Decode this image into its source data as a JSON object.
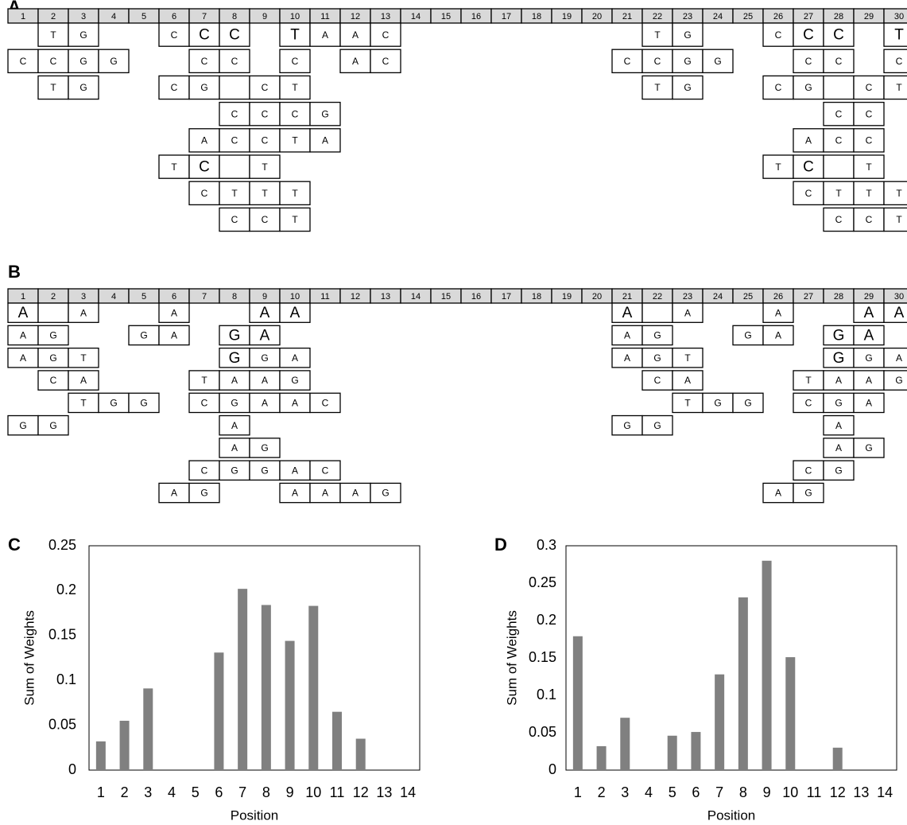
{
  "panel_a": {
    "label": "A",
    "positions": [
      1,
      2,
      3,
      4,
      5,
      6,
      7,
      8,
      9,
      10,
      11,
      12,
      13,
      14,
      15,
      16,
      17,
      18,
      19,
      20,
      21,
      22,
      23,
      24,
      25,
      26,
      27,
      28,
      29,
      30
    ],
    "rows": [
      [
        {
          "col": 2,
          "cells": [
            "T",
            "G"
          ]
        },
        {
          "col": 6,
          "cells": [
            "C",
            {
              "text": "C",
              "large": true
            },
            {
              "text": "C",
              "large": true
            }
          ]
        },
        {
          "col": 10,
          "cells": [
            {
              "text": "T",
              "large": true
            },
            "A",
            "A",
            "C"
          ]
        },
        {
          "col": 22,
          "cells": [
            "T",
            "G"
          ]
        },
        {
          "col": 26,
          "cells": [
            "C",
            {
              "text": "C",
              "large": true
            },
            {
              "text": "C",
              "large": true
            }
          ]
        },
        {
          "col": 30,
          "cells": [
            {
              "text": "T",
              "large": true
            }
          ]
        }
      ],
      [
        {
          "col": 1,
          "cells": [
            "C",
            "C",
            "G",
            "G"
          ]
        },
        {
          "col": 7,
          "cells": [
            "C",
            "C"
          ]
        },
        {
          "col": 10,
          "cells": [
            "C"
          ]
        },
        {
          "col": 12,
          "cells": [
            "A",
            "C"
          ]
        },
        {
          "col": 21,
          "cells": [
            "C",
            "C",
            "G",
            "G"
          ]
        },
        {
          "col": 27,
          "cells": [
            "C",
            "C"
          ]
        },
        {
          "col": 30,
          "cells": [
            "C"
          ]
        }
      ],
      [
        {
          "col": 2,
          "cells": [
            "T",
            "G"
          ]
        },
        {
          "col": 6,
          "cells": [
            "C",
            "G",
            null,
            "C",
            "T"
          ]
        },
        {
          "col": 22,
          "cells": [
            "T",
            "G"
          ]
        },
        {
          "col": 26,
          "cells": [
            "C",
            "G",
            null,
            "C",
            "T"
          ]
        }
      ],
      [
        {
          "col": 8,
          "cells": [
            "C",
            "C",
            "C",
            "G"
          ]
        },
        {
          "col": 28,
          "cells": [
            "C",
            "C"
          ]
        }
      ],
      [
        {
          "col": 7,
          "cells": [
            "A",
            "C",
            "C",
            "T",
            "A"
          ]
        },
        {
          "col": 27,
          "cells": [
            "A",
            "C",
            "C"
          ]
        }
      ],
      [
        {
          "col": 6,
          "cells": [
            "T",
            {
              "text": "C",
              "large": true
            },
            null,
            "T"
          ]
        },
        {
          "col": 26,
          "cells": [
            "T",
            {
              "text": "C",
              "large": true
            },
            null,
            "T"
          ]
        }
      ],
      [
        {
          "col": 7,
          "cells": [
            "C",
            "T",
            "T",
            "T"
          ]
        },
        {
          "col": 27,
          "cells": [
            "C",
            "T",
            "T",
            "T"
          ]
        }
      ],
      [
        {
          "col": 8,
          "cells": [
            "C",
            "C",
            "T"
          ]
        },
        {
          "col": 28,
          "cells": [
            "C",
            "C",
            "T"
          ]
        }
      ]
    ]
  },
  "panel_b": {
    "label": "B",
    "positions": [
      1,
      2,
      3,
      4,
      5,
      6,
      7,
      8,
      9,
      10,
      11,
      12,
      13,
      14,
      15,
      16,
      17,
      18,
      19,
      20,
      21,
      22,
      23,
      24,
      25,
      26,
      27,
      28,
      29,
      30
    ],
    "rows": [
      [
        {
          "col": 1,
          "cells": [
            {
              "text": "A",
              "large": true
            },
            null,
            "A"
          ]
        },
        {
          "col": 6,
          "cells": [
            "A"
          ]
        },
        {
          "col": 9,
          "cells": [
            {
              "text": "A",
              "large": true
            },
            {
              "text": "A",
              "large": true
            }
          ]
        },
        {
          "col": 21,
          "cells": [
            {
              "text": "A",
              "large": true
            },
            null,
            "A"
          ]
        },
        {
          "col": 26,
          "cells": [
            "A"
          ]
        },
        {
          "col": 29,
          "cells": [
            {
              "text": "A",
              "large": true
            },
            {
              "text": "A",
              "large": true
            }
          ]
        }
      ],
      [
        {
          "col": 1,
          "cells": [
            "A",
            "G"
          ]
        },
        {
          "col": 5,
          "cells": [
            "G",
            "A"
          ]
        },
        {
          "col": 8,
          "cells": [
            {
              "text": "G",
              "large": true
            },
            {
              "text": "A",
              "large": true
            }
          ]
        },
        {
          "col": 21,
          "cells": [
            "A",
            "G"
          ]
        },
        {
          "col": 25,
          "cells": [
            "G",
            "A"
          ]
        },
        {
          "col": 28,
          "cells": [
            {
              "text": "G",
              "large": true
            },
            {
              "text": "A",
              "large": true
            }
          ]
        }
      ],
      [
        {
          "col": 1,
          "cells": [
            "A",
            "G",
            "T"
          ]
        },
        {
          "col": 8,
          "cells": [
            {
              "text": "G",
              "large": true
            },
            "G",
            "A"
          ]
        },
        {
          "col": 21,
          "cells": [
            "A",
            "G",
            "T"
          ]
        },
        {
          "col": 28,
          "cells": [
            {
              "text": "G",
              "large": true
            },
            "G",
            "A"
          ]
        }
      ],
      [
        {
          "col": 2,
          "cells": [
            "C",
            "A"
          ]
        },
        {
          "col": 7,
          "cells": [
            "T",
            "A",
            "A",
            "G"
          ]
        },
        {
          "col": 22,
          "cells": [
            "C",
            "A"
          ]
        },
        {
          "col": 27,
          "cells": [
            "T",
            "A",
            "A",
            "G"
          ]
        }
      ],
      [
        {
          "col": 3,
          "cells": [
            "T",
            "G",
            "G"
          ]
        },
        {
          "col": 7,
          "cells": [
            "C",
            "G",
            "A",
            "A",
            "C"
          ]
        },
        {
          "col": 23,
          "cells": [
            "T",
            "G",
            "G"
          ]
        },
        {
          "col": 27,
          "cells": [
            "C",
            "G",
            "A"
          ]
        }
      ],
      [
        {
          "col": 1,
          "cells": [
            "G",
            "G"
          ]
        },
        {
          "col": 8,
          "cells": [
            "A"
          ]
        },
        {
          "col": 21,
          "cells": [
            "G",
            "G"
          ]
        },
        {
          "col": 28,
          "cells": [
            "A"
          ]
        }
      ],
      [
        {
          "col": 8,
          "cells": [
            "A",
            "G"
          ]
        },
        {
          "col": 28,
          "cells": [
            "A",
            "G"
          ]
        }
      ],
      [
        {
          "col": 7,
          "cells": [
            "C",
            "G",
            "G",
            "A",
            "C"
          ]
        },
        {
          "col": 27,
          "cells": [
            "C",
            "G"
          ]
        }
      ],
      [
        {
          "col": 6,
          "cells": [
            "A",
            "G"
          ]
        },
        {
          "col": 10,
          "cells": [
            "A",
            "A",
            "A",
            "G"
          ]
        },
        {
          "col": 26,
          "cells": [
            "A",
            "G"
          ]
        }
      ]
    ]
  },
  "chart_data": [
    {
      "type": "bar",
      "panel_label": "C",
      "x_label": "Position",
      "y_label": "Sum of Weights",
      "color": "#808080",
      "categories": [
        1,
        2,
        3,
        4,
        5,
        6,
        7,
        8,
        9,
        10,
        11,
        12,
        13,
        14
      ],
      "values": [
        0.032,
        0.055,
        0.091,
        0,
        0,
        0.131,
        0.202,
        0.184,
        0.144,
        0.183,
        0.065,
        0.035,
        0,
        0
      ],
      "ylim": [
        0,
        0.25
      ],
      "yticks": [
        0,
        0.05,
        0.1,
        0.15,
        0.2,
        0.25
      ],
      "grid": false
    },
    {
      "type": "bar",
      "panel_label": "D",
      "x_label": "Position",
      "y_label": "Sum of Weights",
      "color": "#808080",
      "categories": [
        1,
        2,
        3,
        4,
        5,
        6,
        7,
        8,
        9,
        10,
        11,
        12,
        13,
        14
      ],
      "values": [
        0.179,
        0.032,
        0.07,
        0,
        0.046,
        0.051,
        0.128,
        0.231,
        0.28,
        0.151,
        0,
        0.03,
        0,
        0
      ],
      "ylim": [
        0,
        0.3
      ],
      "yticks": [
        0,
        0.05,
        0.1,
        0.15,
        0.2,
        0.25,
        0.3
      ],
      "grid": false
    }
  ]
}
